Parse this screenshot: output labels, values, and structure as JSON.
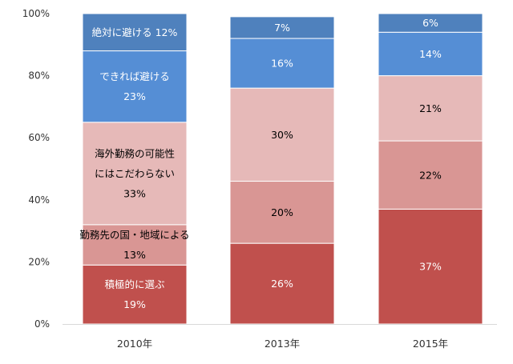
{
  "chart_data": {
    "type": "bar",
    "stacked": true,
    "percent_stacked": true,
    "categories": [
      "2010年",
      "2013年",
      "2015年"
    ],
    "ylim": [
      0,
      100
    ],
    "y_ticks": [
      0,
      20,
      40,
      60,
      80,
      100
    ],
    "y_tick_labels": [
      "0%",
      "20%",
      "40%",
      "60%",
      "80%",
      "100%"
    ],
    "grid": false,
    "legend": "none",
    "series": [
      {
        "name": "積極的に選ぶ",
        "values": [
          19,
          26,
          37
        ],
        "color": "#c0504d"
      },
      {
        "name": "勤務先の国・地域による",
        "values": [
          13,
          20,
          22
        ],
        "color": "#d99694"
      },
      {
        "name": "海外勤務の可能性にはこだわらない",
        "values": [
          33,
          30,
          21
        ],
        "color": "#e6b9b8"
      },
      {
        "name": "できれば避ける",
        "values": [
          23,
          16,
          14
        ],
        "color": "#558ed5"
      },
      {
        "name": "絶対に避ける",
        "values": [
          12,
          7,
          6
        ],
        "color": "#4f81bd"
      }
    ],
    "data_labels": [
      [
        {
          "lines": [
            "積極的に選ぶ",
            "19%"
          ],
          "color": "#ffffff"
        },
        {
          "lines": [
            "勤務先の国・地域による",
            "13%"
          ],
          "color": "#000000"
        },
        {
          "lines": [
            "海外勤務の可能性",
            "にはこだわらない",
            "33%"
          ],
          "color": "#000000"
        },
        {
          "lines": [
            "できれば避ける",
            "23%"
          ],
          "color": "#ffffff"
        },
        {
          "lines": [
            "絶対に避ける 12%"
          ],
          "color": "#ffffff"
        }
      ],
      [
        {
          "lines": [
            "26%"
          ],
          "color": "#ffffff"
        },
        {
          "lines": [
            "20%"
          ],
          "color": "#000000"
        },
        {
          "lines": [
            "30%"
          ],
          "color": "#000000"
        },
        {
          "lines": [
            "16%"
          ],
          "color": "#ffffff"
        },
        {
          "lines": [
            "7%"
          ],
          "color": "#ffffff"
        }
      ],
      [
        {
          "lines": [
            "37%"
          ],
          "color": "#ffffff"
        },
        {
          "lines": [
            "22%"
          ],
          "color": "#000000"
        },
        {
          "lines": [
            "21%"
          ],
          "color": "#000000"
        },
        {
          "lines": [
            "14%"
          ],
          "color": "#ffffff"
        },
        {
          "lines": [
            "6%"
          ],
          "color": "#ffffff"
        }
      ]
    ]
  }
}
